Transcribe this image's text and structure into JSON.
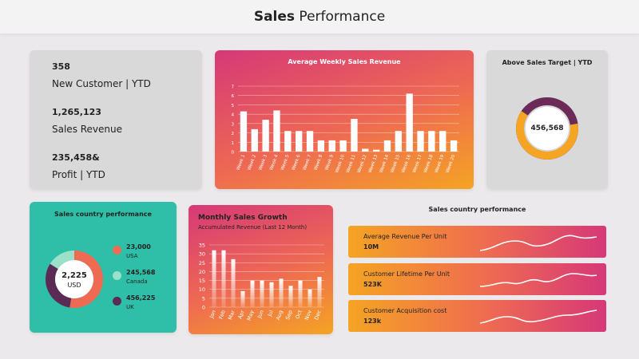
{
  "header": {
    "title_bold": "Sales",
    "title_rest": " Performance"
  },
  "kpis": [
    {
      "value": "358",
      "label": "New Customer | YTD"
    },
    {
      "value": "1,265,123",
      "label": "Sales Revenue"
    },
    {
      "value": "235,458&",
      "label": "Profit | YTD"
    }
  ],
  "weekly_chart": {
    "title": "Average Weekly Sales Revenue"
  },
  "target": {
    "title": "Above Sales Target | YTD",
    "value": "456,568",
    "fraction": 0.62,
    "colors": {
      "fill": "#f5a423",
      "track": "#6b2a57",
      "inner": "#ffffff"
    }
  },
  "country": {
    "title": "Sales country performance",
    "center_value": "2,225",
    "center_unit": "USD",
    "legend": [
      {
        "value": "23,000",
        "name": "USA",
        "color": "#ee6a52"
      },
      {
        "value": "245,568",
        "name": "Canada",
        "color": "#9be0c8"
      },
      {
        "value": "456,225",
        "name": "UK",
        "color": "#5b2a55"
      }
    ]
  },
  "monthly": {
    "title": "Monthly Sales Growth",
    "subtitle": "Accumulated Revenue (Last 12 Month)"
  },
  "performance": {
    "title": "Sales country performance",
    "items": [
      {
        "label": "Average Revenue Per Unit",
        "value": "10M"
      },
      {
        "label": "Customer Lifetime Per Unit",
        "value": "523K"
      },
      {
        "label": "Customer Acquisition cost",
        "value": "123k"
      }
    ]
  },
  "chart_data": [
    {
      "type": "bar",
      "title": "Average Weekly Sales Revenue",
      "categories": [
        "Week 1",
        "Week 2",
        "Week 3",
        "Week 4",
        "Week 5",
        "Week 6",
        "Week 7",
        "Week 8",
        "Week 9",
        "Week 10",
        "Week 11",
        "Week 12",
        "Week 13",
        "Week 14",
        "Week 15",
        "Week 16",
        "Week 17",
        "Week 18",
        "Week 19",
        "Week 20"
      ],
      "values": [
        4.3,
        2.4,
        3.4,
        4.4,
        2.2,
        2.2,
        2.2,
        1.2,
        1.2,
        1.2,
        3.5,
        0.3,
        0.2,
        1.2,
        2.2,
        6.2,
        2.2,
        2.2,
        2.2,
        1.2
      ],
      "yticks": [
        0,
        1,
        2,
        3,
        4,
        5,
        6,
        7
      ],
      "ylim": [
        0,
        7
      ],
      "grid": true
    },
    {
      "type": "bar",
      "title": "Monthly Sales Growth",
      "subtitle": "Accumulated Revenue (Last 12 Month)",
      "categories": [
        "Jan",
        "Feb",
        "Mar",
        "Apr",
        "May",
        "Jun",
        "Jul",
        "Aug",
        "Sep",
        "Oct",
        "Nov",
        "Dec"
      ],
      "values": [
        32,
        32,
        27,
        9,
        15,
        15,
        14,
        16,
        12,
        15,
        10,
        17
      ],
      "yticks": [
        0,
        5,
        10,
        15,
        20,
        25,
        30,
        35
      ],
      "ylim": [
        0,
        35
      ],
      "grid": true
    },
    {
      "type": "pie",
      "title": "Sales country performance",
      "categories": [
        "USA",
        "Canada",
        "UK"
      ],
      "values": [
        23000,
        245568,
        456225
      ]
    }
  ]
}
